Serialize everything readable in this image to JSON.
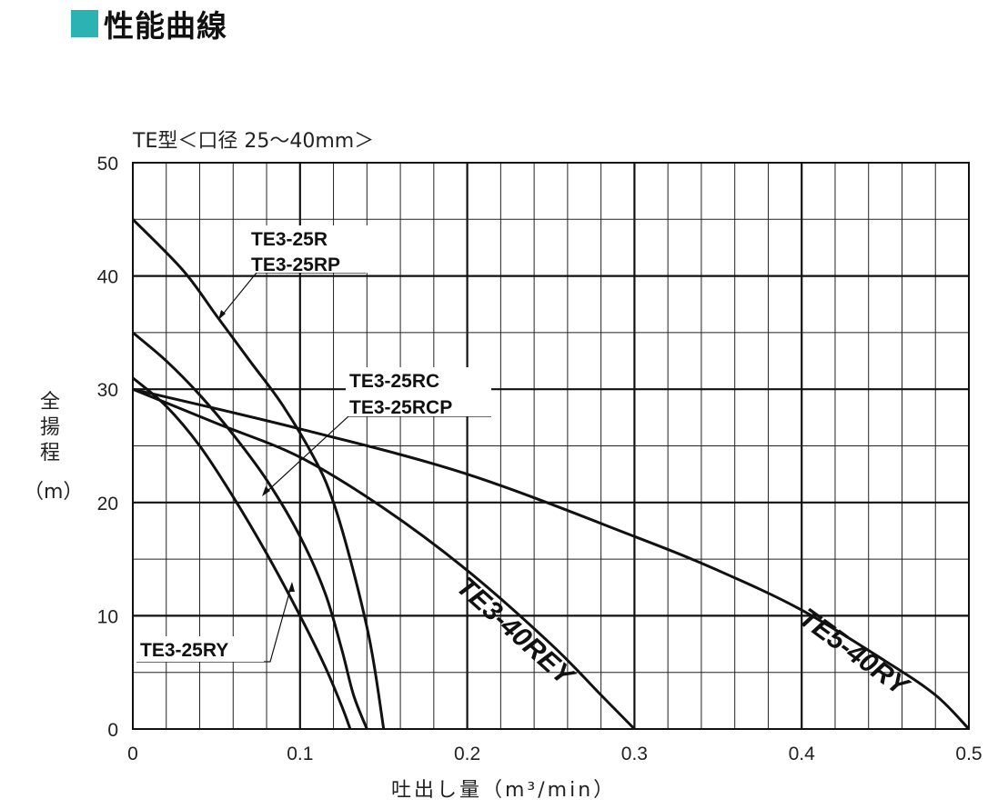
{
  "header": {
    "title": "性能曲線",
    "accent_color": "#2bb3b3"
  },
  "chart_data": {
    "type": "line",
    "subtitle": "TE型＜口径  25～40mm＞",
    "xlabel": "吐出し量（m³/min）",
    "ylabel_chars": [
      "全",
      "揚",
      "程",
      "（m）"
    ],
    "xlim": [
      0,
      0.5
    ],
    "ylim": [
      0,
      50
    ],
    "x_ticks": [
      "0",
      "0.1",
      "0.2",
      "0.3",
      "0.4",
      "0.5"
    ],
    "y_ticks": [
      "0",
      "10",
      "20",
      "30",
      "40",
      "50"
    ],
    "grid": true,
    "series": [
      {
        "name": "TE3-25R / TE3-25RP",
        "label_lines": [
          "TE3-25R",
          "TE3-25RP"
        ],
        "points": [
          [
            0,
            45
          ],
          [
            0.03,
            40.5
          ],
          [
            0.05,
            36.5
          ],
          [
            0.07,
            32.5
          ],
          [
            0.09,
            28.5
          ],
          [
            0.11,
            23.5
          ],
          [
            0.12,
            20
          ],
          [
            0.13,
            15
          ],
          [
            0.14,
            9
          ],
          [
            0.145,
            5
          ],
          [
            0.15,
            0
          ]
        ]
      },
      {
        "name": "TE3-25RC / TE3-25RCP",
        "label_lines": [
          "TE3-25RC",
          "TE3-25RCP"
        ],
        "points": [
          [
            0,
            35
          ],
          [
            0.02,
            32.5
          ],
          [
            0.04,
            29.5
          ],
          [
            0.06,
            26
          ],
          [
            0.08,
            22
          ],
          [
            0.1,
            17
          ],
          [
            0.115,
            12
          ],
          [
            0.125,
            7
          ],
          [
            0.132,
            3
          ],
          [
            0.14,
            0
          ]
        ]
      },
      {
        "name": "TE3-25RY",
        "label_lines": [
          "TE3-25RY"
        ],
        "points": [
          [
            0,
            31
          ],
          [
            0.02,
            28.5
          ],
          [
            0.04,
            25
          ],
          [
            0.06,
            20.5
          ],
          [
            0.08,
            15.5
          ],
          [
            0.1,
            10
          ],
          [
            0.115,
            5.5
          ],
          [
            0.125,
            2
          ],
          [
            0.13,
            0
          ]
        ]
      },
      {
        "name": "TE3-40REY",
        "label_lines": [
          "TE3-40REY"
        ],
        "points": [
          [
            0,
            30
          ],
          [
            0.05,
            27
          ],
          [
            0.1,
            24
          ],
          [
            0.15,
            19.5
          ],
          [
            0.2,
            14
          ],
          [
            0.25,
            7.5
          ],
          [
            0.28,
            3
          ],
          [
            0.3,
            0
          ]
        ]
      },
      {
        "name": "TE5-40RY",
        "label_lines": [
          "TE5-40RY"
        ],
        "points": [
          [
            0,
            30
          ],
          [
            0.1,
            26.5
          ],
          [
            0.2,
            22.5
          ],
          [
            0.3,
            17
          ],
          [
            0.35,
            14
          ],
          [
            0.4,
            10.5
          ],
          [
            0.45,
            6
          ],
          [
            0.48,
            3
          ],
          [
            0.5,
            0
          ]
        ]
      }
    ]
  }
}
